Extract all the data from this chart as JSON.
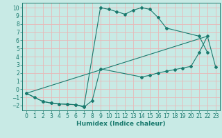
{
  "xlabel": "Humidex (Indice chaleur)",
  "bg_color": "#c8eae5",
  "grid_color": "#e8b8b8",
  "line_color": "#1a7a6e",
  "marker_color": "#1a7a6e",
  "spine_color": "#1a7a6e",
  "xlim": [
    -0.5,
    23.5
  ],
  "ylim": [
    -2.6,
    10.6
  ],
  "xticks": [
    0,
    1,
    2,
    3,
    4,
    5,
    6,
    7,
    8,
    9,
    10,
    11,
    12,
    13,
    14,
    15,
    16,
    17,
    18,
    19,
    20,
    21,
    22,
    23
  ],
  "yticks": [
    -2,
    -1,
    0,
    1,
    2,
    3,
    4,
    5,
    6,
    7,
    8,
    9,
    10
  ],
  "line1_x": [
    0,
    1,
    2,
    3,
    4,
    5,
    6,
    7,
    9,
    10,
    11,
    12,
    13,
    14,
    15,
    16,
    17,
    21,
    22
  ],
  "line1_y": [
    -0.5,
    -1.0,
    -1.5,
    -1.7,
    -1.8,
    -1.85,
    -1.9,
    -2.1,
    10.0,
    9.8,
    9.5,
    9.2,
    9.7,
    10.0,
    9.8,
    8.8,
    7.5,
    6.5,
    4.5
  ],
  "line2_x": [
    0,
    22
  ],
  "line2_y": [
    -0.5,
    6.5
  ],
  "line3_x": [
    0,
    2,
    3,
    4,
    5,
    6,
    7,
    8,
    9,
    14,
    15,
    16,
    17,
    18,
    19,
    20,
    21,
    22,
    23
  ],
  "line3_y": [
    -0.5,
    -1.5,
    -1.7,
    -1.8,
    -1.85,
    -1.9,
    -2.2,
    -1.4,
    2.5,
    1.5,
    1.7,
    2.0,
    2.2,
    2.4,
    2.6,
    2.8,
    4.5,
    6.5,
    2.7
  ],
  "font_color": "#1a7a6e",
  "font_size": 5.5,
  "xlabel_font_size": 6.5
}
